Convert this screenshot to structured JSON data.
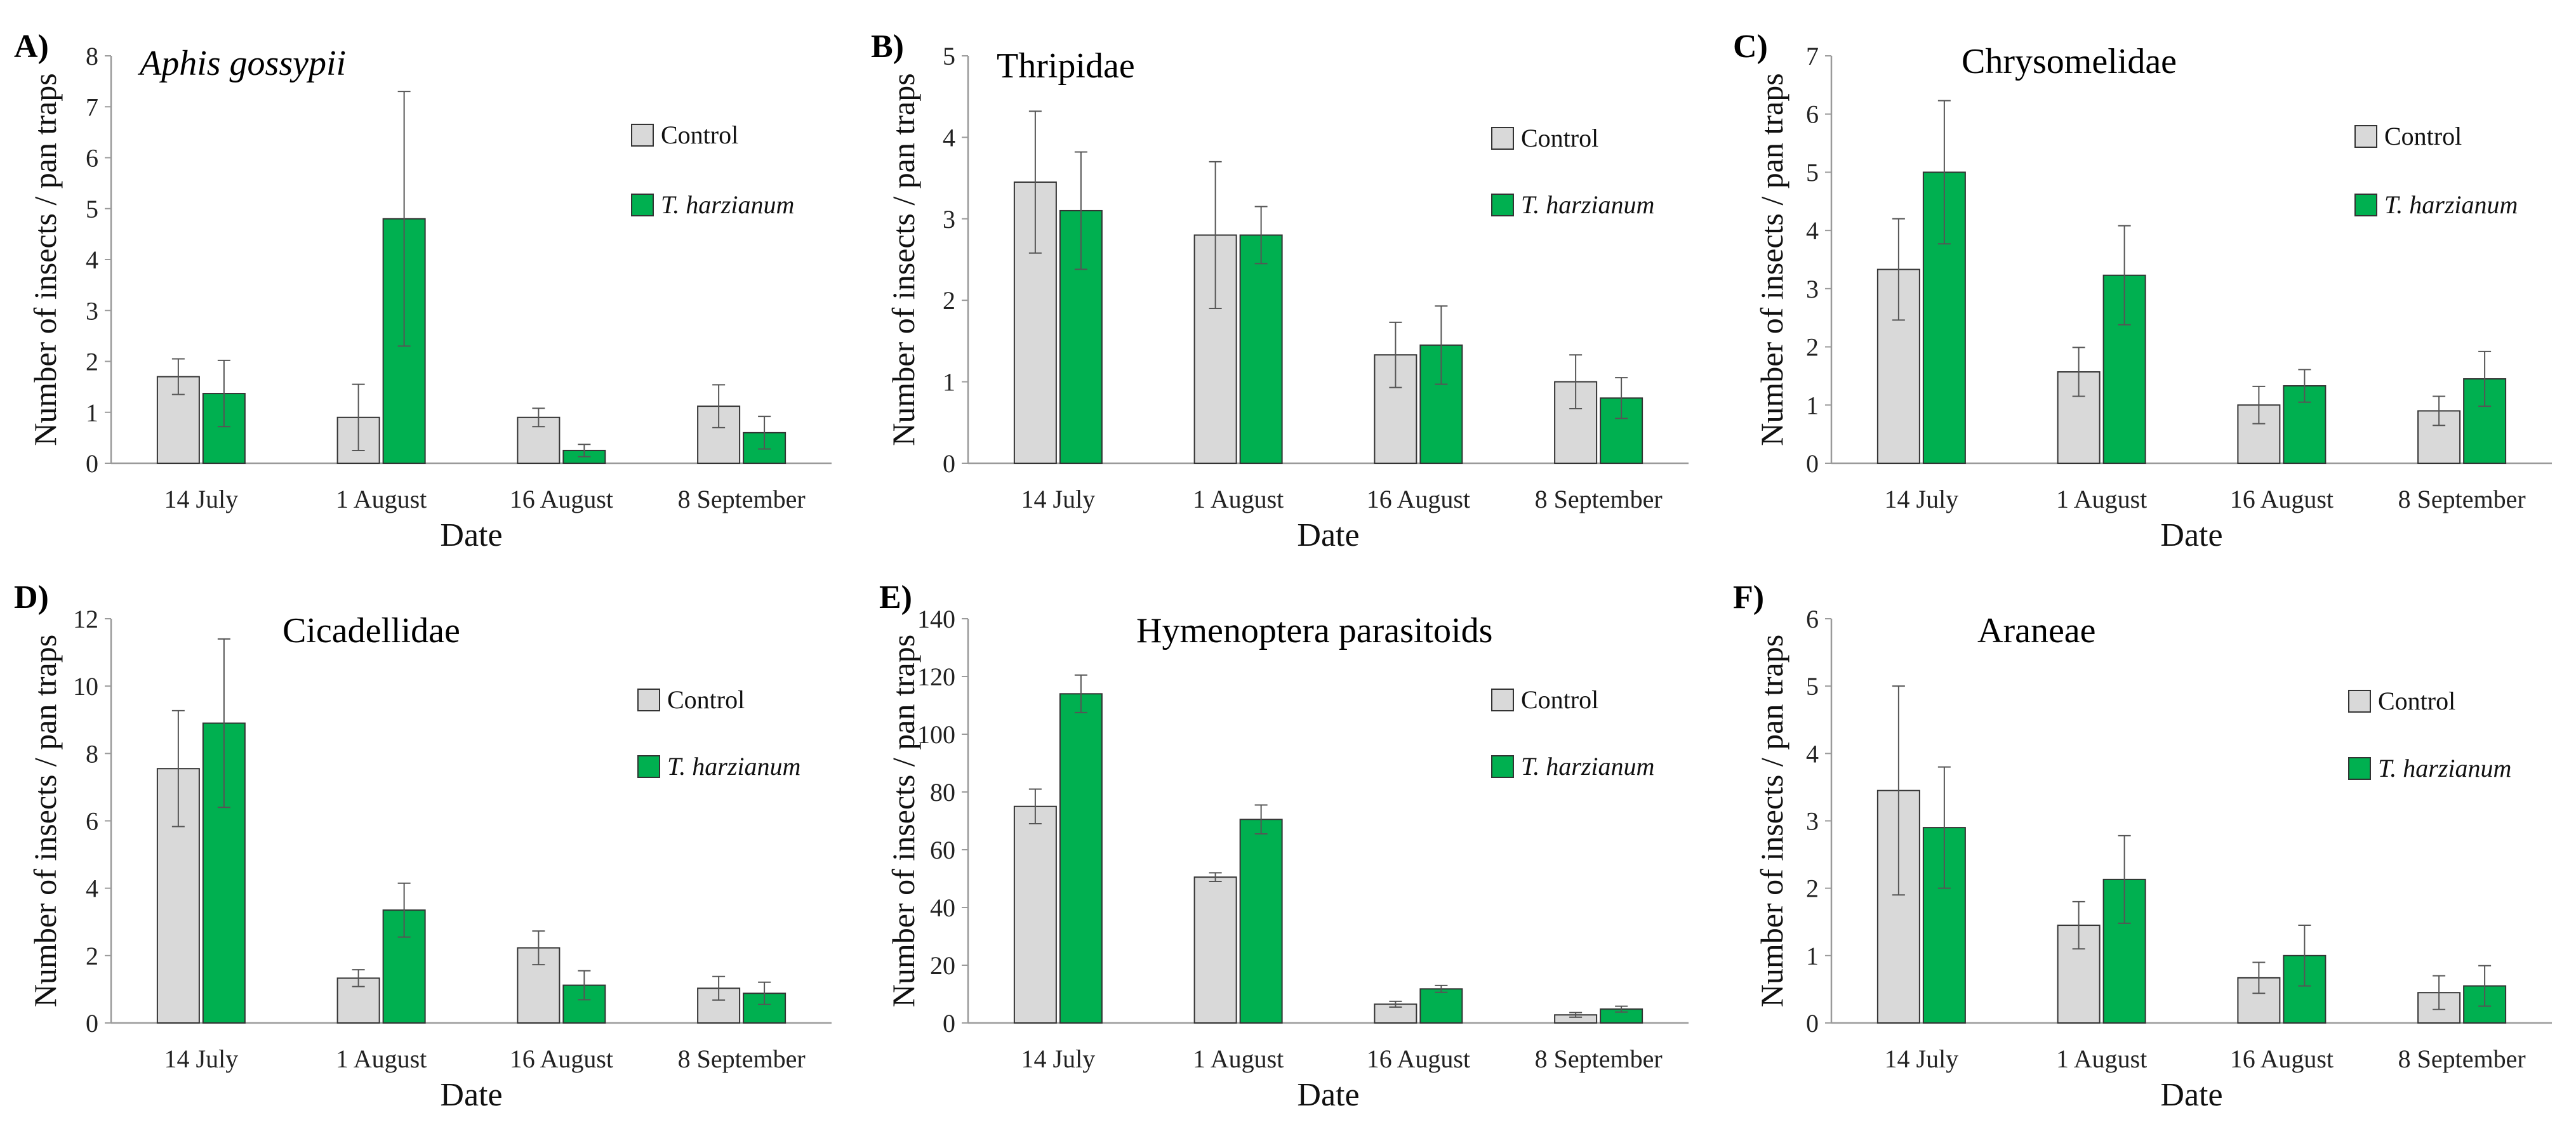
{
  "colors": {
    "control": "#d9d9d9",
    "treatment": "#00b050",
    "stroke": "#333333",
    "axis": "#9a9a9a"
  },
  "legend": {
    "control": "Control",
    "treatment": "T. harzianum"
  },
  "chart_data": [
    {
      "panel": "A)",
      "title": "Aphis gossypii",
      "title_italic": true,
      "type": "bar",
      "categories": [
        "14 July",
        "1 August",
        "16 August",
        "8 September"
      ],
      "xlabel": "Date",
      "ylabel": "Number of insects / pan traps",
      "ylim": [
        0,
        8
      ],
      "yticks": [
        0,
        1,
        2,
        3,
        4,
        5,
        6,
        7,
        8
      ],
      "series": [
        {
          "name": "Control",
          "values": [
            1.7,
            0.9,
            0.9,
            1.12
          ],
          "errors": [
            0.35,
            0.65,
            0.18,
            0.42
          ]
        },
        {
          "name": "T. harzianum",
          "values": [
            1.37,
            4.8,
            0.25,
            0.6
          ],
          "errors": [
            0.65,
            2.5,
            0.12,
            0.32
          ]
        }
      ]
    },
    {
      "panel": "B)",
      "title": "Thripidae",
      "title_italic": false,
      "type": "bar",
      "categories": [
        "14 July",
        "1 August",
        "16 August",
        "8 September"
      ],
      "xlabel": "Date",
      "ylabel": "Number of insects / pan traps",
      "ylim": [
        0,
        5
      ],
      "yticks": [
        0,
        1,
        2,
        3,
        4,
        5
      ],
      "series": [
        {
          "name": "Control",
          "values": [
            3.45,
            2.8,
            1.33,
            1.0
          ],
          "errors": [
            0.87,
            0.9,
            0.4,
            0.33
          ]
        },
        {
          "name": "T. harzianum",
          "values": [
            3.1,
            2.8,
            1.45,
            0.8
          ],
          "errors": [
            0.72,
            0.35,
            0.48,
            0.25
          ]
        }
      ]
    },
    {
      "panel": "C)",
      "title": "Chrysomelidae",
      "title_italic": false,
      "type": "bar",
      "categories": [
        "14 July",
        "1 August",
        "16 August",
        "8 September"
      ],
      "xlabel": "Date",
      "ylabel": "Number of insects / pan traps",
      "ylim": [
        0,
        7
      ],
      "yticks": [
        0,
        1,
        2,
        3,
        4,
        5,
        6,
        7
      ],
      "series": [
        {
          "name": "Control",
          "values": [
            3.33,
            1.57,
            1.0,
            0.9
          ],
          "errors": [
            0.87,
            0.42,
            0.32,
            0.25
          ]
        },
        {
          "name": "T. harzianum",
          "values": [
            5.0,
            3.23,
            1.33,
            1.45
          ],
          "errors": [
            1.23,
            0.85,
            0.28,
            0.47
          ]
        }
      ]
    },
    {
      "panel": "D)",
      "title": "Cicadellidae",
      "title_italic": false,
      "type": "bar",
      "categories": [
        "14 July",
        "1 August",
        "16 August",
        "8 September"
      ],
      "xlabel": "Date",
      "ylabel": "Number of insects / pan traps",
      "ylim": [
        0,
        12
      ],
      "yticks": [
        0,
        2,
        4,
        6,
        8,
        10,
        12
      ],
      "series": [
        {
          "name": "Control",
          "values": [
            7.55,
            1.33,
            2.23,
            1.03
          ],
          "errors": [
            1.72,
            0.25,
            0.5,
            0.35
          ]
        },
        {
          "name": "T. harzianum",
          "values": [
            8.9,
            3.35,
            1.12,
            0.88
          ],
          "errors": [
            2.5,
            0.8,
            0.43,
            0.33
          ]
        }
      ]
    },
    {
      "panel": "E)",
      "title": "Hymenoptera parasitoids",
      "title_italic": false,
      "type": "bar",
      "categories": [
        "14 July",
        "1 August",
        "16 August",
        "8 September"
      ],
      "xlabel": "Date",
      "ylabel": "Number of insects / pan traps",
      "ylim": [
        0,
        140
      ],
      "yticks": [
        0,
        20,
        40,
        60,
        80,
        100,
        120,
        140
      ],
      "series": [
        {
          "name": "Control",
          "values": [
            75,
            50.5,
            6.5,
            2.8
          ],
          "errors": [
            6,
            1.5,
            1.0,
            0.8
          ]
        },
        {
          "name": "T. harzianum",
          "values": [
            114,
            70.5,
            11.8,
            4.8
          ],
          "errors": [
            6.5,
            5,
            1.2,
            1.0
          ]
        }
      ]
    },
    {
      "panel": "F)",
      "title": "Araneae",
      "title_italic": false,
      "type": "bar",
      "categories": [
        "14 July",
        "1 August",
        "16 August",
        "8 September"
      ],
      "xlabel": "Date",
      "ylabel": "Number of insects / pan traps",
      "ylim": [
        0,
        6
      ],
      "yticks": [
        0,
        1,
        2,
        3,
        4,
        5,
        6
      ],
      "series": [
        {
          "name": "Control",
          "values": [
            3.45,
            1.45,
            0.67,
            0.45
          ],
          "errors": [
            1.55,
            0.35,
            0.23,
            0.25
          ]
        },
        {
          "name": "T. harzianum",
          "values": [
            2.9,
            2.13,
            1.0,
            0.55
          ],
          "errors": [
            0.9,
            0.65,
            0.45,
            0.3
          ]
        }
      ]
    }
  ]
}
